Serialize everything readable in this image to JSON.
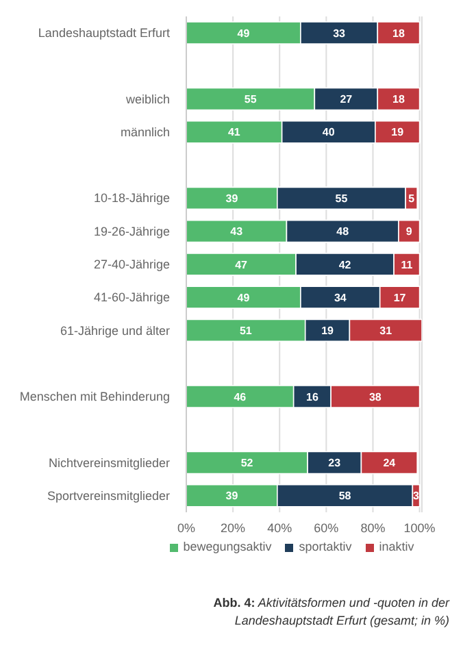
{
  "chart_data": {
    "type": "bar",
    "orientation": "horizontal",
    "stacked": true,
    "categories": [
      "Landeshauptstadt Erfurt",
      null,
      "weiblich",
      "männlich",
      null,
      "10-18-Jährige",
      "19-26-Jährige",
      "27-40-Jährige",
      "41-60-Jährige",
      "61-Jährige und älter",
      null,
      "Menschen mit Behinderung",
      null,
      "Nichtvereinsmitglieder",
      "Sportvereinsmitglieder"
    ],
    "series": [
      {
        "name": "bewegungsaktiv",
        "color": "#52ba6e",
        "values": [
          49,
          null,
          55,
          41,
          null,
          39,
          43,
          47,
          49,
          51,
          null,
          46,
          null,
          52,
          39
        ]
      },
      {
        "name": "sportaktiv",
        "color": "#1f3d5a",
        "values": [
          33,
          null,
          27,
          40,
          null,
          55,
          48,
          42,
          34,
          19,
          null,
          16,
          null,
          23,
          58
        ]
      },
      {
        "name": "inaktiv",
        "color": "#c0393f",
        "values": [
          18,
          null,
          18,
          19,
          null,
          5,
          9,
          11,
          17,
          31,
          null,
          38,
          null,
          24,
          3
        ]
      }
    ],
    "xlim": [
      0,
      101
    ],
    "xticks": [
      {
        "value": 0,
        "label": "0%"
      },
      {
        "value": 20,
        "label": "20%"
      },
      {
        "value": 40,
        "label": "40%"
      },
      {
        "value": 60,
        "label": "60%"
      },
      {
        "value": 80,
        "label": "80%"
      },
      {
        "value": 100,
        "label": "100%"
      }
    ],
    "grid": "x",
    "legend": "bottom",
    "data_labels": true,
    "annotations": [
      "Abb. 4: Aktivitätsformen und -quoten in der Landeshauptstadt Erfurt (gesamt; in %)"
    ]
  }
}
